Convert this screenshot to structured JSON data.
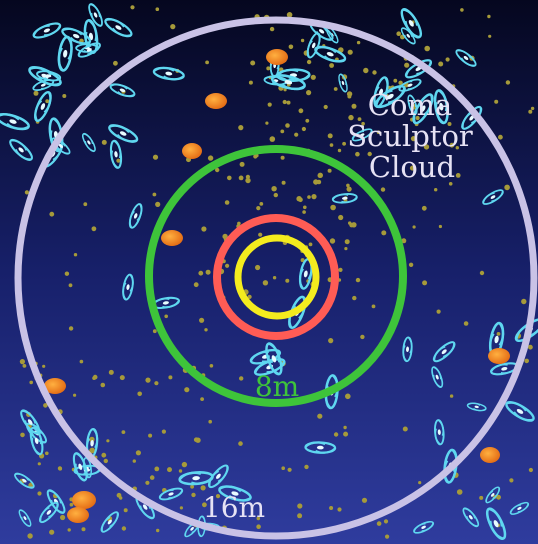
{
  "labels": {
    "group_name": [
      "Coma",
      "Sculptor",
      "Cloud"
    ],
    "ring_inner": "8m",
    "ring_outer": "16m"
  },
  "colors": {
    "sky_top": "#05071f",
    "sky_bottom": "#2f3c9e",
    "ring_outer": "#c9c2e6",
    "ring_green": "#3ec43a",
    "ring_red": "#ff5c55",
    "ring_yellow": "#f4ec1e",
    "dwarf_dot": "#a69a3a",
    "spiral": "#5fd7f0",
    "elliptical": "#f07818",
    "label_light": "#e6e2f4",
    "label_green": "#3ec43a"
  },
  "icons": {
    "spiral": "spiral-galaxy-icon",
    "elliptical": "elliptical-galaxy-icon",
    "dwarf": "dwarf-galaxy-dot"
  }
}
